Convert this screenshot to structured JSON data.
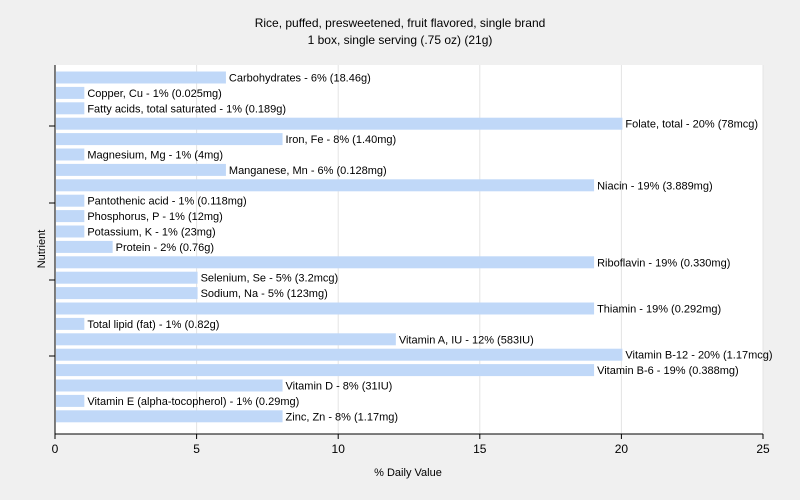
{
  "chart_data": {
    "type": "bar",
    "orientation": "horizontal",
    "title": "Rice, puffed, presweetened, fruit flavored, single brand",
    "subtitle": "1 box, single serving (.75 oz) (21g)",
    "xlabel": "% Daily Value",
    "ylabel": "Nutrient",
    "xlim": [
      0,
      25
    ],
    "xticks": [
      "0",
      "5",
      "10",
      "15",
      "20",
      "25"
    ],
    "grid": "vertical",
    "bar_color": "#c0d8f8",
    "bars": [
      {
        "name": "Carbohydrates",
        "value": 6,
        "label": "Carbohydrates - 6% (18.46g)"
      },
      {
        "name": "Copper, Cu",
        "value": 1,
        "label": "Copper, Cu - 1% (0.025mg)"
      },
      {
        "name": "Fatty acids, total saturated",
        "value": 1,
        "label": "Fatty acids, total saturated - 1% (0.189g)"
      },
      {
        "name": "Folate, total",
        "value": 20,
        "label": "Folate, total - 20% (78mcg)"
      },
      {
        "name": "Iron, Fe",
        "value": 8,
        "label": "Iron, Fe - 8% (1.40mg)"
      },
      {
        "name": "Magnesium, Mg",
        "value": 1,
        "label": "Magnesium, Mg - 1% (4mg)"
      },
      {
        "name": "Manganese, Mn",
        "value": 6,
        "label": "Manganese, Mn - 6% (0.128mg)"
      },
      {
        "name": "Niacin",
        "value": 19,
        "label": "Niacin - 19% (3.889mg)"
      },
      {
        "name": "Pantothenic acid",
        "value": 1,
        "label": "Pantothenic acid - 1% (0.118mg)"
      },
      {
        "name": "Phosphorus, P",
        "value": 1,
        "label": "Phosphorus, P - 1% (12mg)"
      },
      {
        "name": "Potassium, K",
        "value": 1,
        "label": "Potassium, K - 1% (23mg)"
      },
      {
        "name": "Protein",
        "value": 2,
        "label": "Protein - 2% (0.76g)"
      },
      {
        "name": "Riboflavin",
        "value": 19,
        "label": "Riboflavin - 19% (0.330mg)"
      },
      {
        "name": "Selenium, Se",
        "value": 5,
        "label": "Selenium, Se - 5% (3.2mcg)"
      },
      {
        "name": "Sodium, Na",
        "value": 5,
        "label": "Sodium, Na - 5% (123mg)"
      },
      {
        "name": "Thiamin",
        "value": 19,
        "label": "Thiamin - 19% (0.292mg)"
      },
      {
        "name": "Total lipid (fat)",
        "value": 1,
        "label": "Total lipid (fat) - 1% (0.82g)"
      },
      {
        "name": "Vitamin A, IU",
        "value": 12,
        "label": "Vitamin A, IU - 12% (583IU)"
      },
      {
        "name": "Vitamin B-12",
        "value": 20,
        "label": "Vitamin B-12 - 20% (1.17mcg)"
      },
      {
        "name": "Vitamin B-6",
        "value": 19,
        "label": "Vitamin B-6 - 19% (0.388mg)"
      },
      {
        "name": "Vitamin D",
        "value": 8,
        "label": "Vitamin D - 8% (31IU)"
      },
      {
        "name": "Vitamin E (alpha-tocopherol)",
        "value": 1,
        "label": "Vitamin E (alpha-tocopherol) - 1% (0.29mg)"
      },
      {
        "name": "Zinc, Zn",
        "value": 8,
        "label": "Zinc, Zn - 8% (1.17mg)"
      }
    ]
  }
}
